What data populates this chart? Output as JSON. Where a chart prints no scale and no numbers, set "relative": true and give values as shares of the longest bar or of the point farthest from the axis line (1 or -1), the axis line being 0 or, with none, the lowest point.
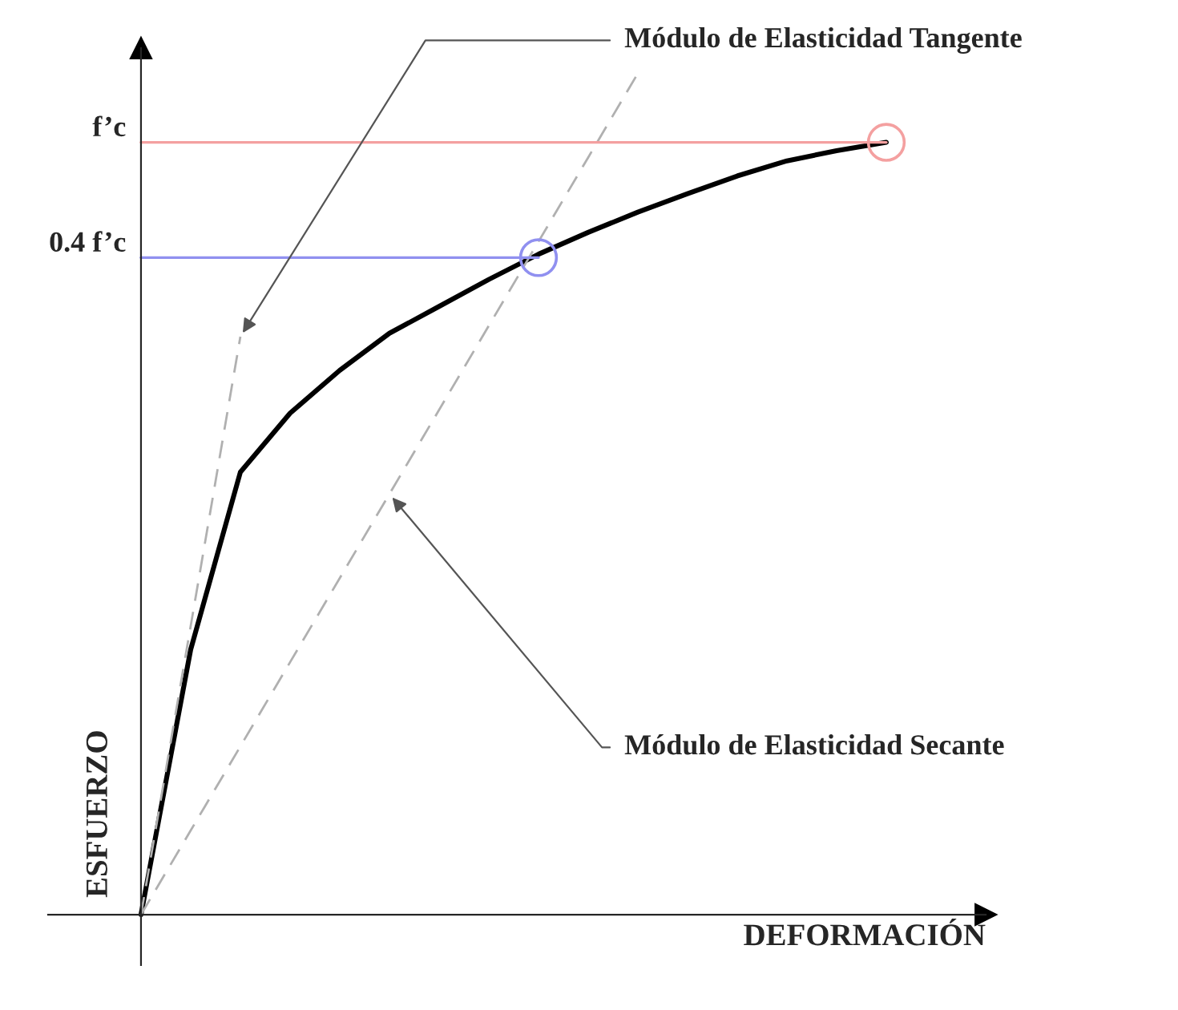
{
  "chart_data": {
    "type": "line",
    "relative": true,
    "xlabel": "DEFORMACIÓN",
    "ylabel": "ESFUERZO",
    "categories": [
      null,
      null,
      null,
      null,
      null,
      null,
      null,
      null,
      null,
      null,
      null,
      null,
      null,
      null,
      null,
      null
    ],
    "series": [
      {
        "color": "#000000",
        "line_style": "solid",
        "values": [
          0,
          0.315,
          0.526,
          0.596,
          0.647,
          0.691,
          0.723,
          0.755,
          0.785,
          0.811,
          0.835,
          0.857,
          0.878,
          0.896,
          0.908,
          0.918
        ]
      },
      {
        "color": "#b0b0b0",
        "line_style": "dashed",
        "values": [
          0,
          0.343,
          0.687,
          null,
          null,
          null,
          null,
          null,
          null,
          null,
          null,
          null,
          null,
          null,
          null,
          null
        ]
      },
      {
        "color": "#b0b0b0",
        "line_style": "dashed",
        "values": [
          0,
          0.1,
          0.2,
          0.3,
          0.4,
          0.5,
          0.6,
          0.7,
          0.8,
          0.9,
          1.0,
          null,
          null,
          null,
          null,
          null
        ]
      }
    ],
    "ref_lines": [
      {
        "axis": "y",
        "value": 0.918,
        "label": "f’c",
        "color": "#f4a0a0",
        "line_style": "solid"
      },
      {
        "axis": "y",
        "value": 0.781,
        "label": "0.4 f’c",
        "color": "#9090f0",
        "line_style": "solid"
      }
    ],
    "annotations": [
      "Módulo de Elasticidad Tangente",
      "Módulo de Elasticidad Secante"
    ]
  }
}
